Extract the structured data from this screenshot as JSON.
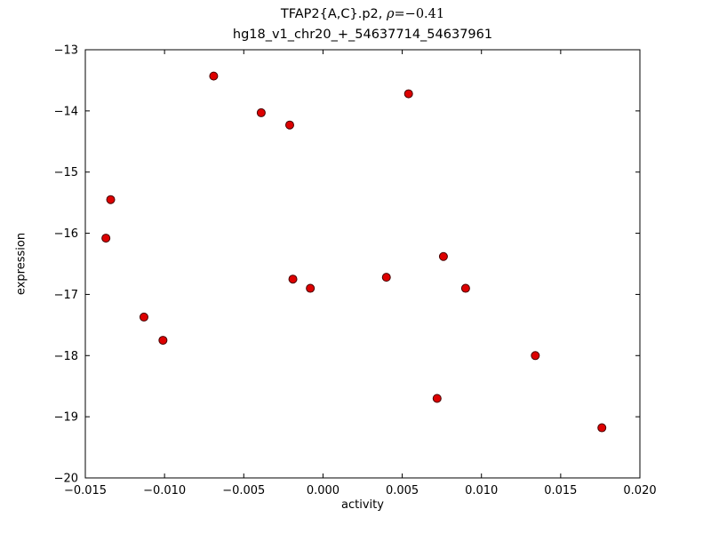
{
  "chart_data": {
    "type": "scatter",
    "title_prefix": "TFAP2{A,C}.p2, ",
    "title_rho": "ρ",
    "title_rho_rest": "=−0.41",
    "title_line2": "hg18_v1_chr20_+_54637714_54637961",
    "xlabel": "activity",
    "ylabel": "expression",
    "xlim": [
      -0.015,
      0.02
    ],
    "ylim": [
      -20,
      -13
    ],
    "xticks": [
      -0.015,
      -0.01,
      -0.005,
      0.0,
      0.005,
      0.01,
      0.015,
      0.02
    ],
    "xtick_labels": [
      "−0.015",
      "−0.010",
      "−0.005",
      "0.000",
      "0.005",
      "0.010",
      "0.015",
      "0.020"
    ],
    "yticks": [
      -13,
      -14,
      -15,
      -16,
      -17,
      -18,
      -19,
      -20
    ],
    "ytick_labels": [
      "−13",
      "−14",
      "−15",
      "−16",
      "−17",
      "−18",
      "−19",
      "−20"
    ],
    "grid": false,
    "legend": null,
    "marker": {
      "shape": "circle",
      "fill": "#dd0000",
      "edge": "#440000",
      "radius": 4.5
    },
    "axis_color": "#000000",
    "points": [
      [
        -0.0069,
        -13.43
      ],
      [
        -0.0039,
        -14.03
      ],
      [
        -0.0021,
        -14.23
      ],
      [
        0.0054,
        -13.72
      ],
      [
        -0.0134,
        -15.45
      ],
      [
        -0.0137,
        -16.08
      ],
      [
        -0.0113,
        -17.37
      ],
      [
        -0.0101,
        -17.75
      ],
      [
        -0.0019,
        -16.75
      ],
      [
        -0.0008,
        -16.9
      ],
      [
        0.004,
        -16.72
      ],
      [
        0.0076,
        -16.38
      ],
      [
        0.009,
        -16.9
      ],
      [
        0.0134,
        -18.0
      ],
      [
        0.0072,
        -18.7
      ],
      [
        0.0176,
        -19.18
      ]
    ]
  }
}
